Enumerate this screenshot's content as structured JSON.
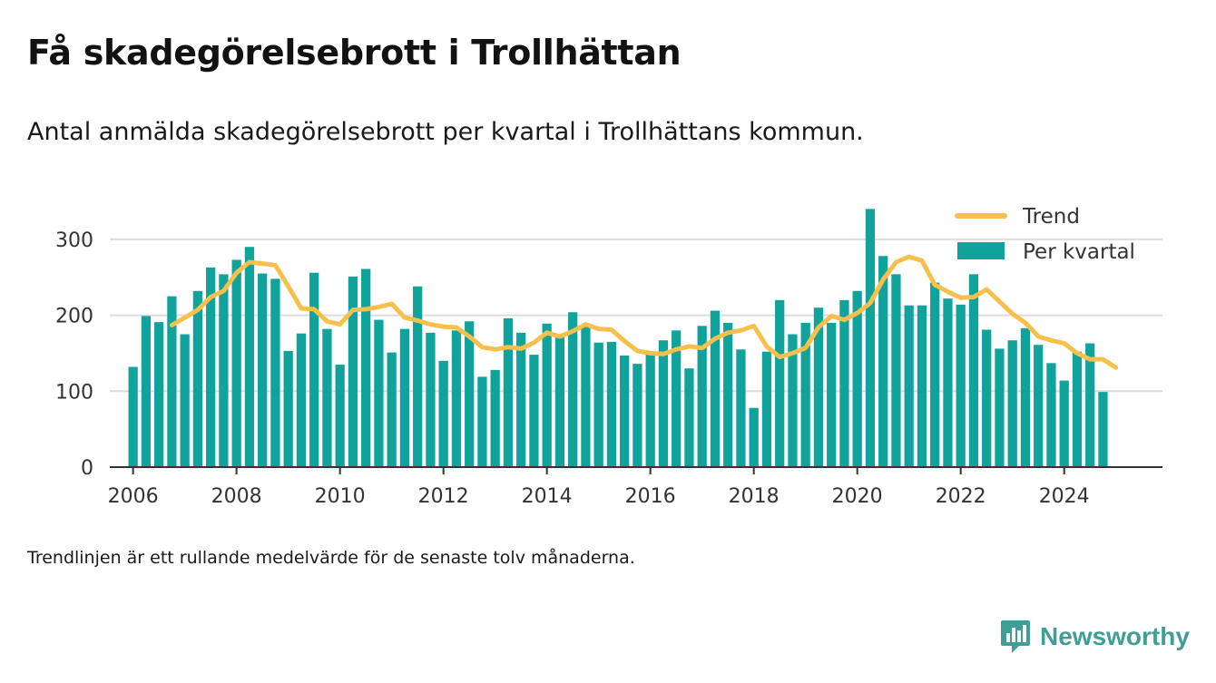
{
  "header": {
    "title": "Få skadegörelsebrott i Trollhättan",
    "subtitle": "Antal anmälda skadegörelsebrott per kvartal i Trollhättans kommun."
  },
  "footer": {
    "note": "Trendlinjen är ett rullande medelvärde för de senaste tolv månaderna.",
    "brand": "Newsworthy"
  },
  "colors": {
    "bars": "#0fa39b",
    "trend": "#f7c04c",
    "brand": "#3f9e96"
  },
  "icons": {
    "brand": "newsworthy-logo-icon"
  },
  "chart_data": {
    "type": "bar",
    "title": "",
    "xlabel": "",
    "ylabel": "",
    "ylim": [
      0,
      350
    ],
    "yticks": [
      0,
      100,
      200,
      300
    ],
    "xlim": [
      2005.55,
      2025.9
    ],
    "xticks": [
      2006,
      2008,
      2010,
      2012,
      2014,
      2016,
      2018,
      2020,
      2022,
      2024
    ],
    "grid": "horizontal",
    "legend_position": "top-right",
    "legend": [
      "Trend",
      "Per kvartal"
    ],
    "series": [
      {
        "name": "Per kvartal",
        "type": "bar",
        "x": [
          "2006 Q1",
          "2006 Q2",
          "2006 Q3",
          "2006 Q4",
          "2007 Q1",
          "2007 Q2",
          "2007 Q3",
          "2007 Q4",
          "2008 Q1",
          "2008 Q2",
          "2008 Q3",
          "2008 Q4",
          "2009 Q1",
          "2009 Q2",
          "2009 Q3",
          "2009 Q4",
          "2010 Q1",
          "2010 Q2",
          "2010 Q3",
          "2010 Q4",
          "2011 Q1",
          "2011 Q2",
          "2011 Q3",
          "2011 Q4",
          "2012 Q1",
          "2012 Q2",
          "2012 Q3",
          "2012 Q4",
          "2013 Q1",
          "2013 Q2",
          "2013 Q3",
          "2013 Q4",
          "2014 Q1",
          "2014 Q2",
          "2014 Q3",
          "2014 Q4",
          "2015 Q1",
          "2015 Q2",
          "2015 Q3",
          "2015 Q4",
          "2016 Q1",
          "2016 Q2",
          "2016 Q3",
          "2016 Q4",
          "2017 Q1",
          "2017 Q2",
          "2017 Q3",
          "2017 Q4",
          "2018 Q1",
          "2018 Q2",
          "2018 Q3",
          "2018 Q4",
          "2019 Q1",
          "2019 Q2",
          "2019 Q3",
          "2019 Q4",
          "2020 Q1",
          "2020 Q2",
          "2020 Q3",
          "2020 Q4",
          "2021 Q1",
          "2021 Q2",
          "2021 Q3",
          "2021 Q4",
          "2022 Q1",
          "2022 Q2",
          "2022 Q3",
          "2022 Q4",
          "2023 Q1",
          "2023 Q2",
          "2023 Q3",
          "2023 Q4",
          "2024 Q1",
          "2024 Q2",
          "2024 Q3",
          "2024 Q4"
        ],
        "values": [
          132,
          199,
          191,
          225,
          175,
          232,
          263,
          254,
          273,
          290,
          255,
          248,
          153,
          176,
          256,
          182,
          135,
          251,
          261,
          194,
          151,
          182,
          238,
          177,
          140,
          180,
          192,
          119,
          128,
          196,
          177,
          148,
          189,
          172,
          204,
          185,
          164,
          165,
          147,
          136,
          150,
          167,
          180,
          130,
          186,
          206,
          190,
          155,
          78,
          152,
          220,
          175,
          190,
          210,
          190,
          220,
          232,
          340,
          278,
          254,
          213,
          213,
          243,
          222,
          214,
          254,
          181,
          156,
          167,
          183,
          161,
          137,
          114,
          152,
          163,
          99
        ]
      },
      {
        "name": "Trend",
        "type": "line",
        "x_start_quarter": "2006 Q4",
        "values": [
          187,
          197,
          207,
          224,
          232,
          256,
          270,
          268,
          266,
          238,
          209,
          208,
          192,
          188,
          207,
          208,
          211,
          215,
          197,
          193,
          188,
          185,
          184,
          172,
          158,
          155,
          158,
          156,
          164,
          177,
          172,
          179,
          188,
          182,
          181,
          166,
          153,
          150,
          149,
          155,
          159,
          157,
          169,
          177,
          180,
          186,
          159,
          145,
          150,
          157,
          184,
          199,
          194,
          203,
          216,
          247,
          270,
          277,
          272,
          240,
          231,
          223,
          224,
          234,
          218,
          202,
          190,
          172,
          167,
          163,
          150,
          142,
          142,
          131
        ]
      }
    ]
  }
}
